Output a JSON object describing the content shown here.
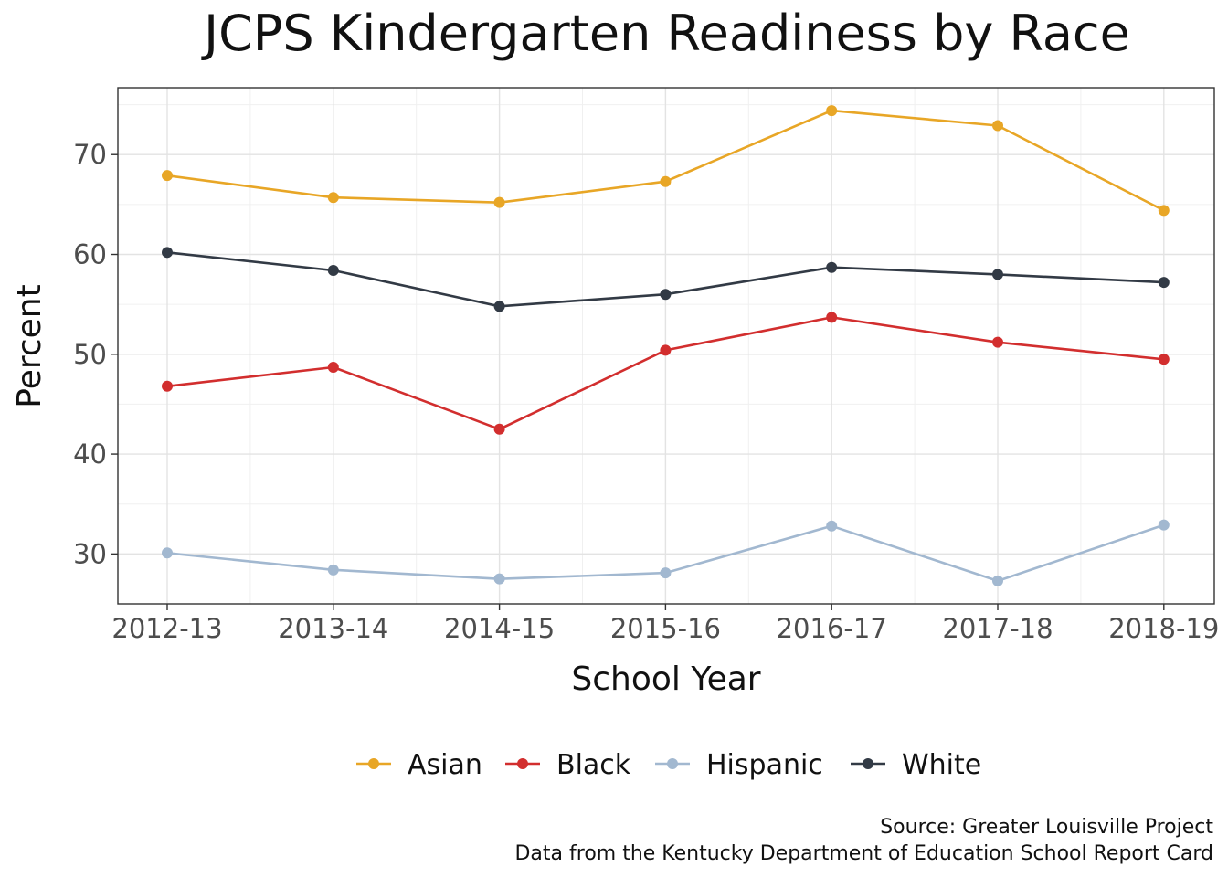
{
  "chart_data": {
    "type": "line",
    "title": "JCPS Kindergarten Readiness by Race",
    "xlabel": "School Year",
    "ylabel": "Percent",
    "categories": [
      "2012-13",
      "2013-14",
      "2014-15",
      "2015-16",
      "2016-17",
      "2017-18",
      "2018-19"
    ],
    "y_ticks": [
      30,
      40,
      50,
      60,
      70
    ],
    "ylim": [
      25,
      76.7
    ],
    "grid": true,
    "legend_position": "bottom",
    "series": [
      {
        "name": "Asian",
        "color": "#e8a626",
        "values": [
          67.9,
          65.7,
          65.2,
          67.3,
          74.4,
          72.9,
          64.4
        ]
      },
      {
        "name": "Black",
        "color": "#d22e2e",
        "values": [
          46.8,
          48.7,
          42.5,
          50.4,
          53.7,
          51.2,
          49.5
        ]
      },
      {
        "name": "Hispanic",
        "color": "#a2b8d0",
        "values": [
          30.1,
          28.4,
          27.5,
          28.1,
          32.8,
          27.3,
          32.9
        ]
      },
      {
        "name": "White",
        "color": "#323a45",
        "values": [
          60.2,
          58.4,
          54.8,
          56.0,
          58.7,
          58.0,
          57.2
        ]
      }
    ],
    "caption": [
      "Source: Greater Louisville Project",
      "Data from the Kentucky Department of Education School Report Card"
    ]
  }
}
